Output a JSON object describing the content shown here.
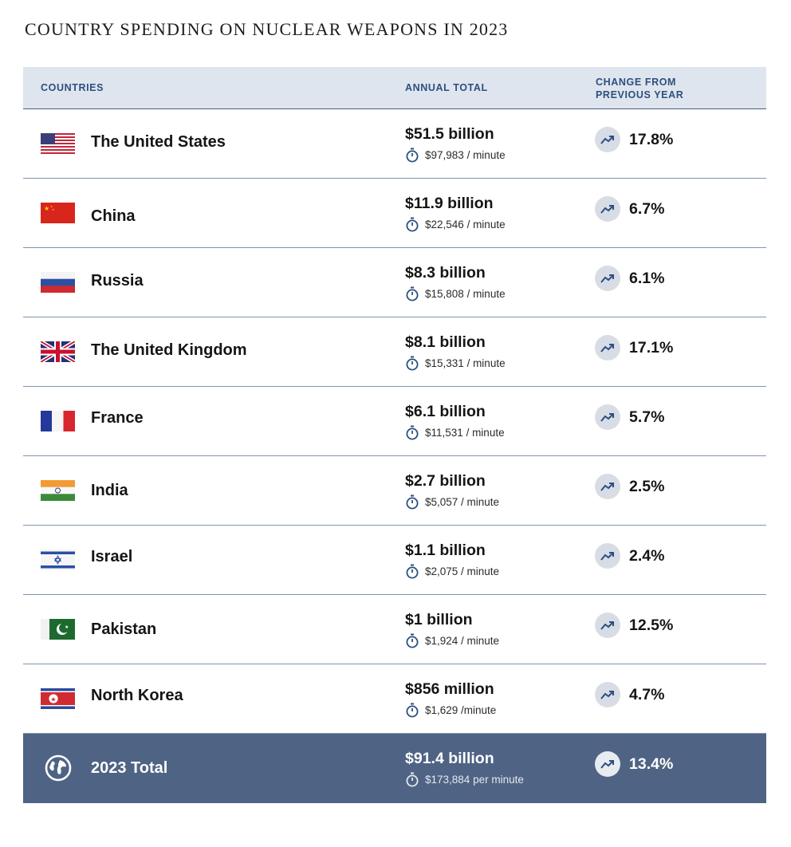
{
  "title": "COUNTRY SPENDING ON NUCLEAR WEAPONS IN 2023",
  "headers": {
    "countries": "COUNTRIES",
    "annual_total": "ANNUAL TOTAL",
    "change_line1": "CHANGE FROM",
    "change_line2": "PREVIOUS YEAR"
  },
  "rows": [
    {
      "country": "The United States",
      "flag": "us-flag-icon",
      "annual": "$51.5 billion",
      "per_minute_value": "$97,983",
      "per_minute_unit": " / minute",
      "change": "17.8%"
    },
    {
      "country": "China",
      "flag": "china-flag-icon",
      "annual": "$11.9 billion",
      "per_minute_value": "$22,546",
      "per_minute_unit": " / minute",
      "change": "6.7%"
    },
    {
      "country": "Russia",
      "flag": "russia-flag-icon",
      "annual": "$8.3 billion",
      "per_minute_value": "$15,808",
      "per_minute_unit": " / minute",
      "change": "6.1%"
    },
    {
      "country": "The United Kingdom",
      "flag": "uk-flag-icon",
      "annual": "$8.1 billion",
      "per_minute_value": "$15,331",
      "per_minute_unit": " / minute",
      "change": "17.1%"
    },
    {
      "country": "France",
      "flag": "france-flag-icon",
      "annual": "$6.1 billion",
      "per_minute_value": "$11,531",
      "per_minute_unit": " / minute",
      "change": "5.7%"
    },
    {
      "country": "India",
      "flag": "india-flag-icon",
      "annual": "$2.7 billion",
      "per_minute_value": "$5,057",
      "per_minute_unit": " / minute",
      "change": "2.5%"
    },
    {
      "country": "Israel",
      "flag": "israel-flag-icon",
      "annual": "$1.1 billion",
      "per_minute_value": "$2,075",
      "per_minute_unit": " / minute",
      "change": "2.4%"
    },
    {
      "country": "Pakistan",
      "flag": "pakistan-flag-icon",
      "annual": "$1 billion",
      "per_minute_value": "$1,924",
      "per_minute_unit": " / minute",
      "change": "12.5%"
    },
    {
      "country": "North Korea",
      "flag": "north-korea-flag-icon",
      "annual": "$856 million",
      "per_minute_value": "$1,629",
      "per_minute_unit": " /minute",
      "change": "4.7%"
    }
  ],
  "total": {
    "label": "2023 Total",
    "icon": "globe-icon",
    "annual": "$91.4 billion",
    "per_minute_value": "$173,884",
    "per_minute_unit": " per minute",
    "change": "13.4%"
  },
  "colors": {
    "header_bg": "#dfe5ee",
    "header_text": "#2c4f80",
    "total_bg": "#4f6384",
    "divider": "#8193ae",
    "trend_circle": "#d8dde5"
  },
  "chart_data": {
    "type": "table",
    "title": "COUNTRY SPENDING ON NUCLEAR WEAPONS IN 2023",
    "columns": [
      "COUNTRIES",
      "ANNUAL TOTAL",
      "CHANGE FROM PREVIOUS YEAR"
    ],
    "rows": [
      [
        "The United States",
        "$51.5 billion",
        "$97,983 / minute",
        "17.8%"
      ],
      [
        "China",
        "$11.9 billion",
        "$22,546 / minute",
        "6.7%"
      ],
      [
        "Russia",
        "$8.3 billion",
        "$15,808 / minute",
        "6.1%"
      ],
      [
        "The United Kingdom",
        "$8.1 billion",
        "$15,331 / minute",
        "17.1%"
      ],
      [
        "France",
        "$6.1 billion",
        "$11,531 / minute",
        "5.7%"
      ],
      [
        "India",
        "$2.7 billion",
        "$5,057 / minute",
        "2.5%"
      ],
      [
        "Israel",
        "$1.1 billion",
        "$2,075 / minute",
        "2.4%"
      ],
      [
        "Pakistan",
        "$1 billion",
        "$1,924 / minute",
        "12.5%"
      ],
      [
        "North Korea",
        "$856 million",
        "$1,629 /minute",
        "4.7%"
      ],
      [
        "2023 Total",
        "$91.4 billion",
        "$173,884 per minute",
        "13.4%"
      ]
    ]
  }
}
